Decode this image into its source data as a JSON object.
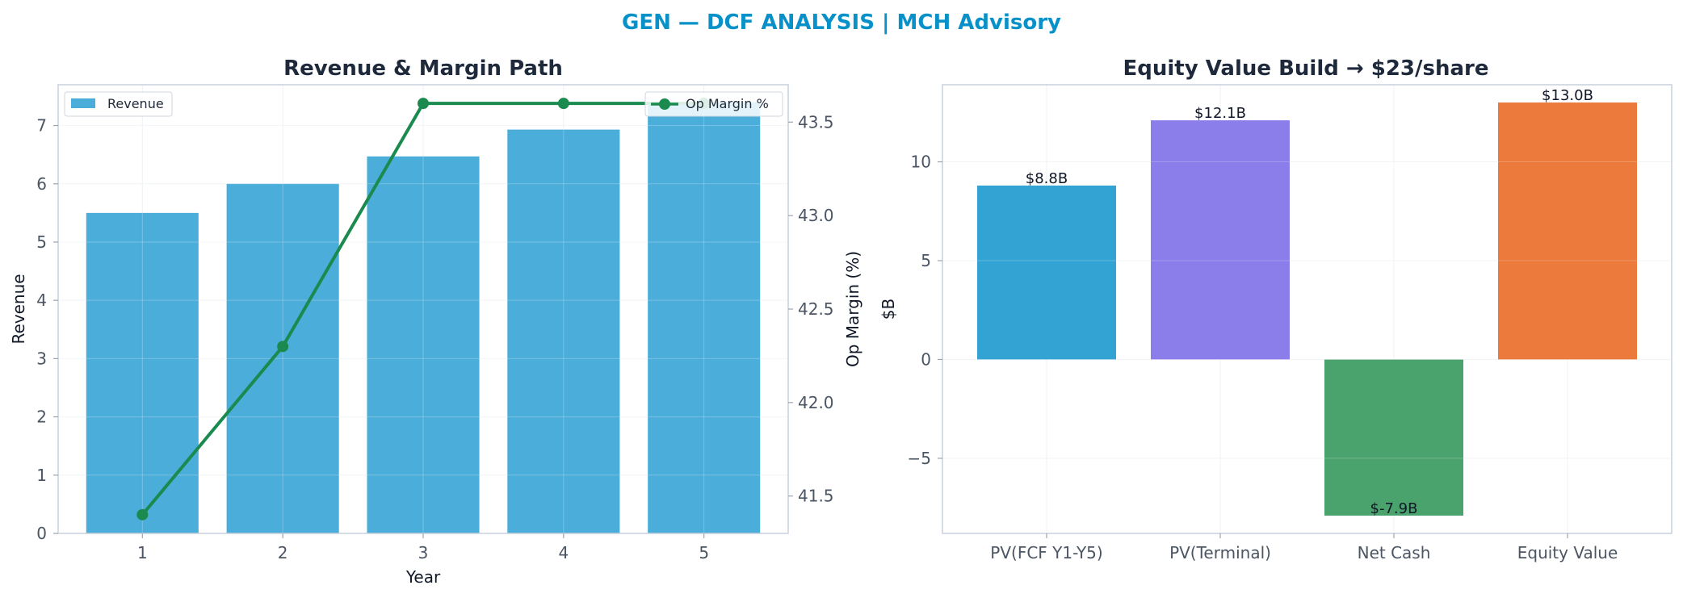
{
  "page": {
    "suptitle": "GEN — DCF ANALYSIS | MCH Advisory",
    "suptitle_color": "#0891c9"
  },
  "chart_data": [
    {
      "type": "bar",
      "title": "Revenue & Margin Path",
      "xlabel": "Year",
      "ylabel": "Revenue",
      "y2label": "Op Margin (%)",
      "categories": [
        "1",
        "2",
        "3",
        "4",
        "5"
      ],
      "ylim": [
        0,
        7.7
      ],
      "y2lim": [
        41.3,
        43.7
      ],
      "yticks": [
        "0",
        "1",
        "2",
        "3",
        "4",
        "5",
        "6",
        "7"
      ],
      "y2ticks": [
        "41.5",
        "42.0",
        "42.5",
        "43.0",
        "43.5"
      ],
      "grid": true,
      "series": [
        {
          "name": "Revenue",
          "kind": "bar",
          "axis": "left",
          "color": "#4badd9",
          "values": [
            5.5,
            6.0,
            6.47,
            6.93,
            7.4
          ]
        },
        {
          "name": "Op Margin %",
          "kind": "line",
          "axis": "right",
          "color": "#1a8a4f",
          "values": [
            41.4,
            42.3,
            43.6,
            43.6,
            43.6
          ]
        }
      ],
      "legend": [
        {
          "label": "Revenue",
          "placement": "upper-left"
        },
        {
          "label": "Op Margin %",
          "placement": "upper-right"
        }
      ]
    },
    {
      "type": "bar",
      "title": "Equity Value Build → $23/share",
      "ylabel": "$B",
      "categories": [
        "PV(FCF Y1-Y5)",
        "PV(Terminal)",
        "Net Cash",
        "Equity Value"
      ],
      "values": [
        8.8,
        12.1,
        -7.9,
        13.0
      ],
      "data_labels": [
        "$8.8B",
        "$12.1B",
        "$-7.9B",
        "$13.0B"
      ],
      "colors": [
        "#33a3d4",
        "#8b7dea",
        "#4aa36d",
        "#ec7a3c"
      ],
      "ylim": [
        -8.8,
        13.9
      ],
      "yticks": [
        "−5",
        "0",
        "5",
        "10"
      ],
      "grid": true
    }
  ]
}
